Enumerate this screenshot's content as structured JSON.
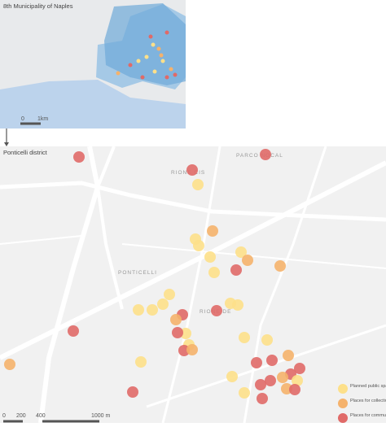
{
  "inset": {
    "title": "8th Municipality of Naples",
    "scale_start": "0",
    "scale_end": "1km"
  },
  "main": {
    "title": "Ponticelli district",
    "place_labels": [
      "PARCO NOCAL",
      "RIONE CIS",
      "PONTICELLI",
      "RIONE DE"
    ],
    "scale_labels": [
      "0",
      "200",
      "400",
      "1000 m"
    ]
  },
  "legend": [
    {
      "label": "Planned public spaces and facilities",
      "color": "#fde08a"
    },
    {
      "label": "Places for collective use",
      "color": "#f5b26c"
    },
    {
      "label": "Places for community use",
      "color": "#e06a68"
    }
  ]
}
